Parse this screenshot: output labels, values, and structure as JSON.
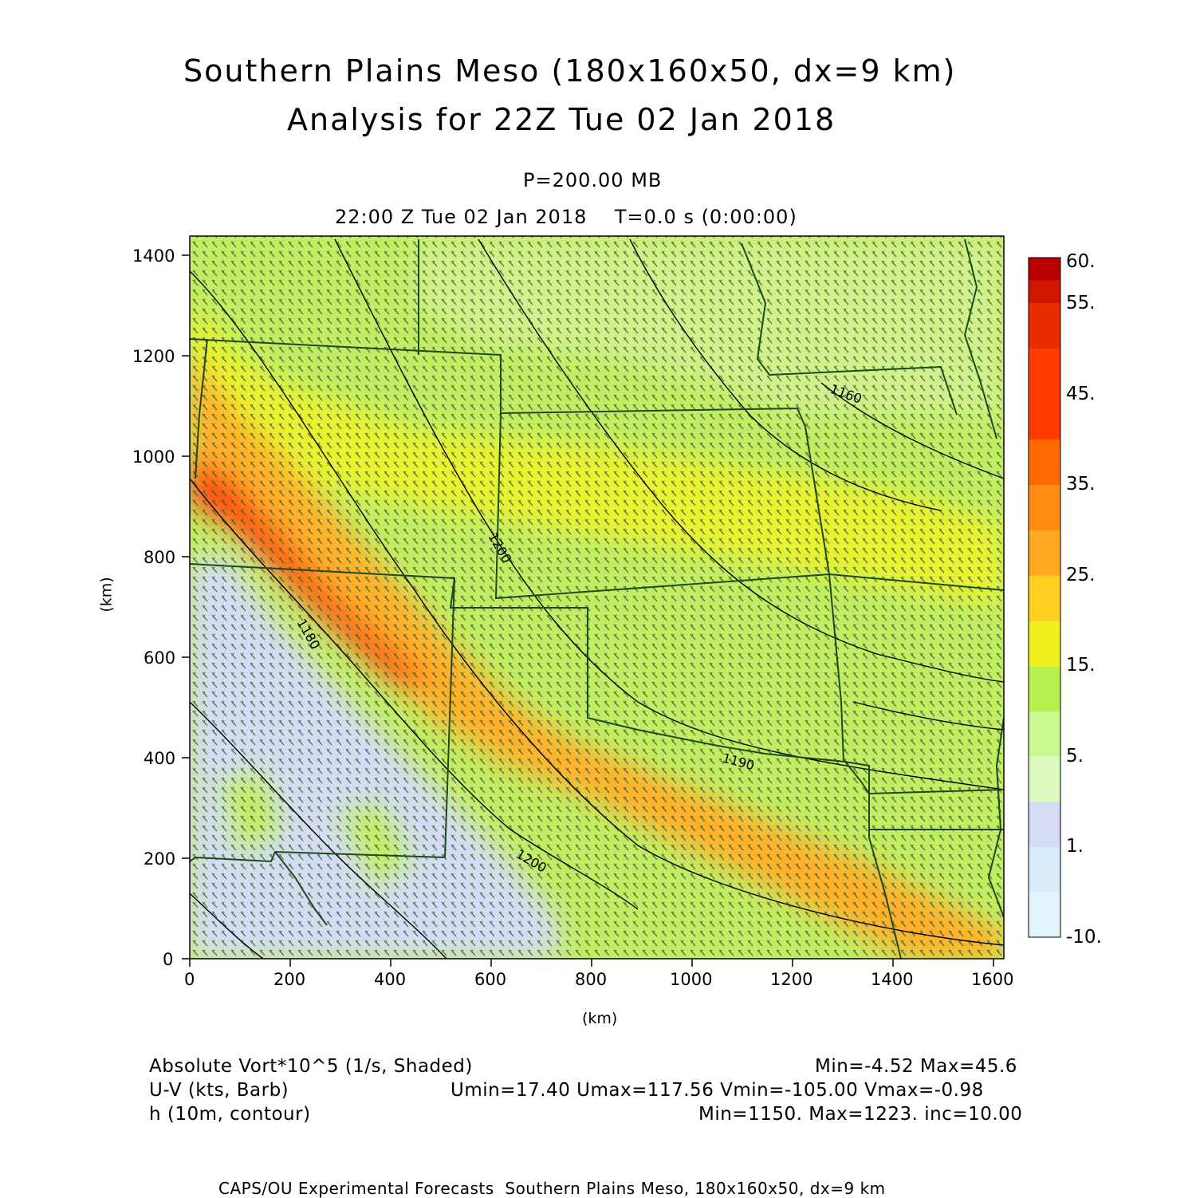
{
  "header": {
    "title_line1": "Southern Plains Meso (180x160x50, dx=9 km)",
    "title_line2": "Analysis for 22Z Tue 02 Jan 2018",
    "pressure": "P=200.00 MB",
    "time": "22:00 Z Tue 02 Jan 2018    T=0.0 s (0:00:00)"
  },
  "axes": {
    "x_label": "(km)",
    "y_label": "(km)",
    "x_ticks": [
      "0",
      "200",
      "400",
      "600",
      "800",
      "1000",
      "1200",
      "1400",
      "1600"
    ],
    "y_ticks": [
      "0",
      "200",
      "400",
      "600",
      "800",
      "1000",
      "1200",
      "1400"
    ],
    "x_range": [
      0,
      1620
    ],
    "y_range": [
      0,
      1440
    ]
  },
  "colorbar": {
    "labels": [
      "60.",
      "55.",
      "45.",
      "35.",
      "25.",
      "15.",
      "5.",
      "1.",
      "-10."
    ],
    "colors": [
      "#b80000",
      "#d01800",
      "#e82e00",
      "#ff3c00",
      "#ff6a00",
      "#ff8c10",
      "#ffaa20",
      "#ffd020",
      "#f0f020",
      "#dcf060",
      "#b8f050",
      "#c8fa90",
      "#dcfac0",
      "#d4dcf4",
      "#d8ecfc",
      "#e4f4fc"
    ]
  },
  "contour_labels": [
    "1160",
    "1200",
    "1180",
    "1190",
    "1200"
  ],
  "legend": {
    "row1_left": "Absolute Vort*10^5 (1/s, Shaded)",
    "row1_right": "Min=-4.52 Max=45.6",
    "row2_left": "U-V (kts, Barb)",
    "row2_right": "Umin=17.40 Umax=117.56 Vmin=-105.00 Vmax=-0.98",
    "row3_left": "h (10m, contour)",
    "row3_right": "Min=1150. Max=1223. inc=10.00"
  },
  "footer": "CAPS/OU Experimental Forecasts  Southern Plains Meso, 180x160x50, dx=9 km"
}
